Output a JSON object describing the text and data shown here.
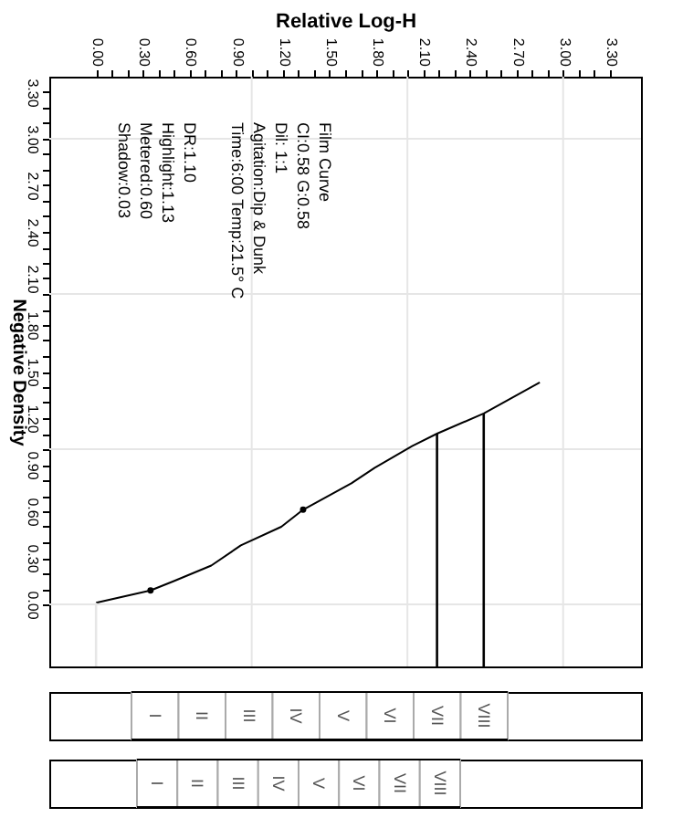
{
  "chart_data": [
    {
      "type": "line",
      "xlabel": "Relative Log-H",
      "ylabel": "Negative Density",
      "annotations": [
        "Film Curve",
        "CI:0.58  G:0.58",
        "Dil: 1:1",
        "Agitation:Dip & Dunk",
        "Time:6:00  Temp:21.5° C",
        "DR:1.10",
        "Highlight:1.13",
        "Metered:0.60",
        "Shadow:0.03"
      ],
      "series": [
        {
          "type": "line",
          "color": "#000000",
          "marker": "none",
          "x": [
            0,
            0.35,
            0.5,
            0.74,
            0.93,
            1.19,
            1.33,
            1.64,
            1.79,
            2.03,
            2.19,
            2.49,
            2.85
          ],
          "values": [
            0.01,
            0.09,
            0.15,
            0.25,
            0.38,
            0.5,
            0.61,
            0.78,
            0.88,
            1.02,
            1.1,
            1.23,
            1.43
          ]
        },
        {
          "type": "scatter",
          "color": "#000000",
          "marker": "circle",
          "x": [
            0.35,
            1.33
          ],
          "values": [
            0.09,
            0.61
          ]
        }
      ],
      "ref_lines": [
        {
          "axis": "x",
          "value": 0,
          "color": "#e6e6e6"
        },
        {
          "axis": "x",
          "value": 1,
          "color": "#e6e6e6"
        },
        {
          "axis": "x",
          "value": 2,
          "color": "#e6e6e6"
        },
        {
          "axis": "x",
          "value": 3,
          "color": "#e6e6e6"
        },
        {
          "axis": "y",
          "value": 0,
          "color": "#e6e6e6"
        },
        {
          "axis": "y",
          "value": 1,
          "color": "#e6e6e6"
        },
        {
          "axis": "y",
          "value": 2,
          "color": "#e6e6e6"
        },
        {
          "axis": "y",
          "value": 3,
          "color": "#e6e6e6"
        },
        {
          "axis": "x",
          "value": 2.19,
          "color": "#000000"
        },
        {
          "axis": "x",
          "value": 2.49,
          "color": "#000000"
        }
      ],
      "xlim": [
        -0.3,
        3.5
      ],
      "ylim": [
        -0.4,
        3.4
      ],
      "xticks": [
        {
          "value": 0,
          "label": "0.00"
        },
        {
          "value": 0.1,
          "label": null
        },
        {
          "value": 0.2,
          "label": null
        },
        {
          "value": 0.3,
          "label": "0.30"
        },
        {
          "value": 0.4,
          "label": null
        },
        {
          "value": 0.5,
          "label": null
        },
        {
          "value": 0.6,
          "label": "0.60"
        },
        {
          "value": 0.7,
          "label": null
        },
        {
          "value": 0.8,
          "label": null
        },
        {
          "value": 0.9,
          "label": "0.90"
        },
        {
          "value": 1,
          "label": null
        },
        {
          "value": 1.1,
          "label": null
        },
        {
          "value": 1.2,
          "label": "1.20"
        },
        {
          "value": 1.3,
          "label": null
        },
        {
          "value": 1.4,
          "label": null
        },
        {
          "value": 1.5,
          "label": "1.50"
        },
        {
          "value": 1.6,
          "label": null
        },
        {
          "value": 1.7,
          "label": null
        },
        {
          "value": 1.8,
          "label": "1.80"
        },
        {
          "value": 1.9,
          "label": null
        },
        {
          "value": 2,
          "label": null
        },
        {
          "value": 2.1,
          "label": "2.10"
        },
        {
          "value": 2.2,
          "label": null
        },
        {
          "value": 2.3,
          "label": null
        },
        {
          "value": 2.4,
          "label": "2.40"
        },
        {
          "value": 2.5,
          "label": null
        },
        {
          "value": 2.6,
          "label": null
        },
        {
          "value": 2.7,
          "label": "2.70"
        },
        {
          "value": 2.8,
          "label": null
        },
        {
          "value": 2.9,
          "label": null
        },
        {
          "value": 3,
          "label": "3.00"
        },
        {
          "value": 3.1,
          "label": null
        },
        {
          "value": 3.2,
          "label": null
        },
        {
          "value": 3.3,
          "label": "3.30"
        }
      ],
      "yticks": [
        {
          "value": 0,
          "label": "0.00"
        },
        {
          "value": 0.1,
          "label": null
        },
        {
          "value": 0.2,
          "label": null
        },
        {
          "value": 0.3,
          "label": "0.30"
        },
        {
          "value": 0.4,
          "label": null
        },
        {
          "value": 0.5,
          "label": null
        },
        {
          "value": 0.6,
          "label": "0.60"
        },
        {
          "value": 0.7,
          "label": null
        },
        {
          "value": 0.8,
          "label": null
        },
        {
          "value": 0.9,
          "label": "0.90"
        },
        {
          "value": 1,
          "label": null
        },
        {
          "value": 1.1,
          "label": null
        },
        {
          "value": 1.2,
          "label": "1.20"
        },
        {
          "value": 1.3,
          "label": null
        },
        {
          "value": 1.4,
          "label": null
        },
        {
          "value": 1.5,
          "label": "1.50"
        },
        {
          "value": 1.6,
          "label": null
        },
        {
          "value": 1.7,
          "label": null
        },
        {
          "value": 1.8,
          "label": "1.80"
        },
        {
          "value": 1.9,
          "label": null
        },
        {
          "value": 2,
          "label": null
        },
        {
          "value": 2.1,
          "label": "2.10"
        },
        {
          "value": 2.2,
          "label": null
        },
        {
          "value": 2.3,
          "label": null
        },
        {
          "value": 2.4,
          "label": "2.40"
        },
        {
          "value": 2.5,
          "label": null
        },
        {
          "value": 2.6,
          "label": null
        },
        {
          "value": 2.7,
          "label": "2.70"
        },
        {
          "value": 2.8,
          "label": null
        },
        {
          "value": 2.9,
          "label": null
        },
        {
          "value": 3,
          "label": "3.00"
        },
        {
          "value": 3.1,
          "label": null
        },
        {
          "value": 3.2,
          "label": null
        },
        {
          "value": 3.3,
          "label": "3.30"
        }
      ]
    },
    {
      "type": "other",
      "categories": [
        "I",
        "II",
        "III",
        "IV",
        "V",
        "VI",
        "VII",
        "VIII"
      ]
    },
    {
      "type": "other",
      "categories": [
        "I",
        "II",
        "III",
        "IV",
        "V",
        "VI",
        "VII",
        "VIII"
      ]
    }
  ]
}
